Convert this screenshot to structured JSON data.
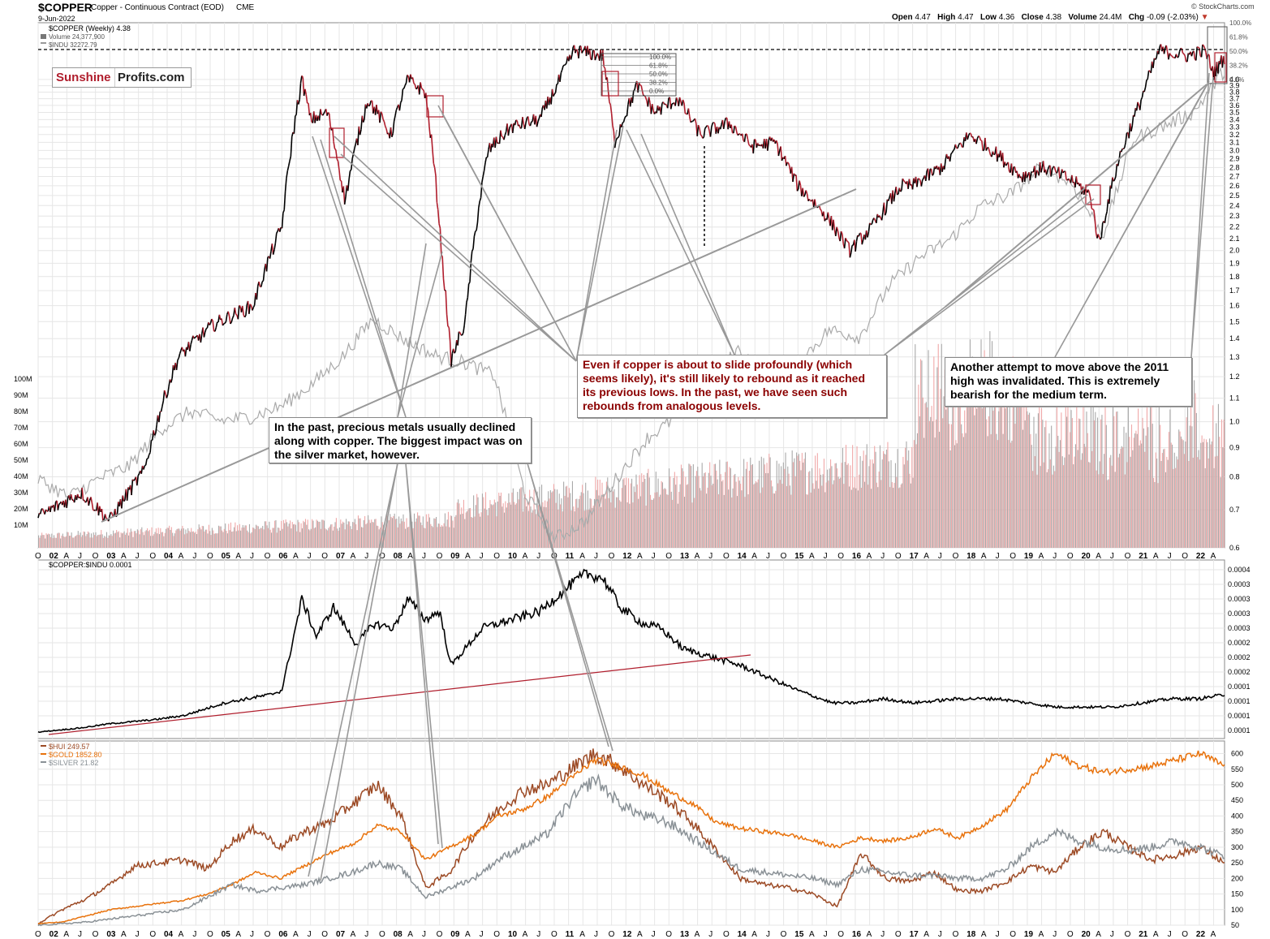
{
  "header": {
    "symbol": "$COPPER",
    "description": "Copper - Continuous Contract (EOD)",
    "exchange": "CME",
    "date": "9-Jun-2022",
    "source": "© StockCharts.com",
    "quote": {
      "open_label": "Open",
      "open": "4.47",
      "high_label": "High",
      "high": "4.47",
      "low_label": "Low",
      "low": "4.36",
      "close_label": "Close",
      "close": "4.38",
      "volume_label": "Volume",
      "volume": "24.4M",
      "chg_label": "Chg",
      "chg": "-0.09 (-2.03%)"
    }
  },
  "logo": {
    "part1": "Sunshine",
    "part2": "Profits.com"
  },
  "annotations": {
    "copper_callout": "Even if copper is about to slide profoundly (which seems likely), it's still likely to rebound as it reached its previous lows. In the past, we have seen such rebounds from analogous levels.",
    "metals_callout": "In the past, precious metals usually declined along with copper. The biggest impact was on the silver market, however.",
    "high_callout": "Another attempt to move above the 2011 high was invalidated. This is extremely bearish for the medium term."
  },
  "colors": {
    "copper_up": "#000000",
    "copper_down": "#b01e2d",
    "indu": "#aaaaaa",
    "trendline": "#999999",
    "ratio": "#000000",
    "ratio_trend": "#b01e2d",
    "hui": "#9c4a25",
    "gold": "#e8720c",
    "silver": "#8a9196",
    "callout_red": "#8b0000"
  },
  "chart_data": [
    {
      "type": "line",
      "panel": "price",
      "legend": [
        "$COPPER (Weekly) 4.38",
        "Volume 24,377,900",
        "$INDU 32272.79"
      ],
      "x": [
        2001.75,
        2002.5,
        2003.0,
        2003.6,
        2004.2,
        2004.8,
        2005.5,
        2006.0,
        2006.35,
        2006.5,
        2006.8,
        2007.1,
        2007.5,
        2007.9,
        2008.2,
        2008.5,
        2008.8,
        2008.95,
        2009.2,
        2009.6,
        2010.0,
        2010.5,
        2010.8,
        2011.1,
        2011.6,
        2011.8,
        2012.2,
        2012.5,
        2012.9,
        2013.3,
        2013.8,
        2014.2,
        2014.6,
        2015.0,
        2015.5,
        2015.9,
        2016.3,
        2016.8,
        2017.0,
        2017.5,
        2018.0,
        2018.4,
        2018.9,
        2019.3,
        2019.8,
        2020.1,
        2020.25,
        2020.6,
        2020.95,
        2021.3,
        2021.8,
        2022.1,
        2022.25,
        2022.44
      ],
      "values": [
        0.68,
        0.75,
        0.67,
        0.82,
        1.3,
        1.48,
        1.6,
        2.2,
        4.0,
        3.4,
        3.5,
        2.45,
        3.7,
        3.2,
        4.0,
        3.8,
        1.9,
        1.28,
        1.5,
        3.0,
        3.3,
        3.4,
        3.9,
        4.5,
        4.4,
        3.1,
        3.9,
        3.5,
        3.7,
        3.2,
        3.35,
        3.05,
        3.1,
        2.6,
        2.3,
        2.0,
        2.2,
        2.6,
        2.6,
        2.8,
        3.2,
        3.0,
        2.7,
        2.8,
        2.65,
        2.5,
        2.05,
        2.9,
        3.6,
        4.5,
        4.4,
        4.5,
        4.1,
        4.38
      ],
      "indu_values": [
        13.8,
        12.8,
        13.8,
        14.5,
        16.5,
        17.5,
        17.0,
        17.2,
        17.8,
        19.0,
        20.5,
        22.6,
        21.5,
        20.6,
        20.2,
        19.5,
        13.0,
        10.5,
        11.5,
        13.8,
        16.0,
        17.2,
        19.0,
        20.9,
        19.5,
        20.2,
        22.0,
        21.6,
        24.5,
        26.0,
        27.0,
        28.8,
        29.5,
        31.0,
        30.0,
        27.2,
        32.5,
        33.2,
        34.0,
        36.3
      ],
      "ylim": [
        0.6,
        5.0
      ],
      "yticks": [
        "0.6",
        "0.7",
        "0.8",
        "0.9",
        "1.0",
        "1.1",
        "1.2",
        "1.3",
        "1.4",
        "1.5",
        "1.6",
        "1.7",
        "1.8",
        "1.9",
        "2.0",
        "2.1",
        "2.2",
        "2.3",
        "2.4",
        "2.5",
        "2.6",
        "2.7",
        "2.8",
        "2.9",
        "3.0",
        "3.1",
        "3.2",
        "3.3",
        "3.4",
        "3.5",
        "3.6",
        "3.7",
        "3.8",
        "3.9",
        "4.0"
      ],
      "volume_ticks": [
        "10M",
        "20M",
        "30M",
        "40M",
        "50M",
        "60M",
        "70M",
        "80M",
        "90M",
        "100M"
      ],
      "fib_labels": [
        "100.0%",
        "61.8%",
        "50.0%",
        "38.2%",
        "0.0%"
      ],
      "fib_labels_right": [
        "100.0%",
        "61.8%",
        "50.0%",
        "38.2%",
        "0.0%"
      ],
      "scale": "log"
    },
    {
      "type": "line",
      "panel": "ratio",
      "legend": "$COPPER:$INDU 0.0001",
      "x": [
        2001.75,
        2002.5,
        2003.0,
        2003.8,
        2004.3,
        2005.0,
        2005.8,
        2006.0,
        2006.35,
        2006.6,
        2006.9,
        2007.3,
        2007.6,
        2007.95,
        2008.2,
        2008.5,
        2008.75,
        2008.95,
        2009.5,
        2010.0,
        2010.5,
        2011.0,
        2011.3,
        2011.6,
        2011.9,
        2012.3,
        2012.6,
        2013.0,
        2013.5,
        2014.0,
        2014.5,
        2015.0,
        2015.6,
        2016.0,
        2016.5,
        2017.0,
        2017.8,
        2018.5,
        2019.5,
        2020.0,
        2020.5,
        2021.0,
        2021.5,
        2022.0,
        2022.44
      ],
      "yticks": [
        "0.0001",
        "0.0001",
        "0.0001",
        "0.0001",
        "0.0002",
        "0.0002",
        "0.0002",
        "0.0003",
        "0.0003",
        "0.0003",
        "0.0003",
        "0.0004"
      ],
      "values": [
        3e-05,
        4e-05,
        5e-05,
        6e-05,
        7e-05,
        0.0001,
        0.00012,
        0.00013,
        0.00035,
        0.00026,
        0.00033,
        0.00024,
        0.00029,
        0.00028,
        0.00035,
        0.0003,
        0.00032,
        0.00019,
        0.00028,
        0.0003,
        0.00032,
        0.00038,
        0.00041,
        0.0004,
        0.00033,
        0.00029,
        0.00028,
        0.00023,
        0.00021,
        0.00019,
        0.00016,
        0.00013,
        0.0001,
        0.0001,
        0.00011,
        0.0001,
        0.00011,
        0.00011,
        9e-05,
        9e-05,
        9e-05,
        0.0001,
        0.00011,
        0.00011,
        0.00012
      ]
    },
    {
      "type": "line",
      "panel": "metals",
      "series": [
        {
          "name": "$HUI 249.57",
          "values": [
            55,
            100,
            135,
            180,
            240,
            250,
            260,
            230,
            320,
            360,
            300,
            350,
            380,
            440,
            500,
            400,
            170,
            220,
            340,
            420,
            480,
            500,
            550,
            600,
            560,
            500,
            450,
            380,
            290,
            200,
            180,
            170,
            150,
            110,
            280,
            200,
            190,
            220,
            160,
            160,
            190,
            240,
            220,
            300,
            350,
            300,
            260,
            275,
            300,
            249.57
          ]
        },
        {
          "name": "$GOLD 1852.80",
          "values": [
            55,
            60,
            80,
            100,
            110,
            120,
            130,
            150,
            180,
            220,
            200,
            240,
            280,
            310,
            370,
            350,
            260,
            300,
            340,
            400,
            420,
            460,
            520,
            580,
            560,
            530,
            480,
            440,
            380,
            360,
            350,
            340,
            320,
            300,
            330,
            320,
            330,
            360,
            330,
            370,
            420,
            520,
            600,
            560,
            540,
            550,
            560,
            580,
            600,
            560
          ]
        },
        {
          "name": "$SILVER 21.82",
          "values": [
            50,
            55,
            60,
            70,
            80,
            90,
            100,
            140,
            180,
            160,
            170,
            180,
            200,
            220,
            250,
            230,
            140,
            170,
            200,
            260,
            300,
            340,
            450,
            520,
            440,
            400,
            380,
            330,
            280,
            230,
            220,
            210,
            200,
            180,
            230,
            220,
            210,
            210,
            200,
            200,
            230,
            300,
            350,
            320,
            300,
            290,
            300,
            320,
            300,
            270
          ]
        }
      ],
      "x_start": 2001.75,
      "x_end": 2022.44,
      "yticks": [
        "50",
        "100",
        "150",
        "200",
        "250",
        "300",
        "350",
        "400",
        "450",
        "500",
        "550",
        "600"
      ],
      "ylim": [
        50,
        630
      ]
    }
  ],
  "x_axis": {
    "labels_price": [
      "O",
      "02",
      "A",
      "J",
      "O",
      "03",
      "A",
      "J",
      "O",
      "04",
      "A",
      "J",
      "O",
      "05",
      "A",
      "J",
      "O",
      "06",
      "A",
      "J",
      "O",
      "07",
      "A",
      "J",
      "O",
      "08",
      "A",
      "J",
      "O",
      "09",
      "A",
      "J",
      "O",
      "10",
      "A",
      "J",
      "O",
      "11",
      "A",
      "J",
      "O",
      "12",
      "A",
      "J",
      "O",
      "13",
      "A",
      "J",
      "O",
      "14",
      "A",
      "J",
      "O",
      "15",
      "A",
      "J",
      "O",
      "16",
      "A",
      "J",
      "O",
      "17",
      "A",
      "J",
      "O",
      "18",
      "A",
      "J",
      "O",
      "19",
      "A",
      "J",
      "O",
      "20",
      "A",
      "J",
      "O",
      "21",
      "A",
      "J",
      "O",
      "22",
      "A"
    ]
  }
}
